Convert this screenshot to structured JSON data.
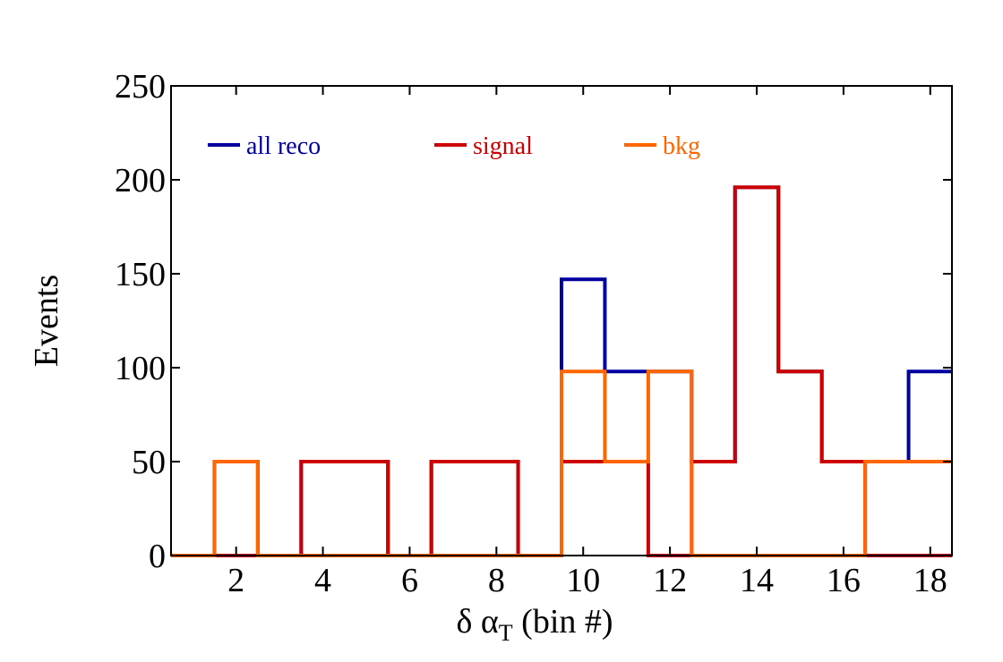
{
  "chart_data": {
    "type": "step",
    "xlabel": "δ α",
    "xlabel_subscript": "T",
    "xlabel_suffix": " (bin #)",
    "ylabel": "Events",
    "xlim": [
      0.5,
      18.5
    ],
    "ylim": [
      0,
      250
    ],
    "xticks": [
      2,
      4,
      6,
      8,
      10,
      12,
      14,
      16,
      18
    ],
    "yticks": [
      0,
      50,
      100,
      150,
      200,
      250
    ],
    "grid": false,
    "legend_position": "top, horizontal",
    "bins": [
      1,
      2,
      3,
      4,
      5,
      6,
      7,
      8,
      9,
      10,
      11,
      12,
      13,
      14,
      15,
      16,
      17,
      18
    ],
    "series": [
      {
        "name": "all reco",
        "color": "#00009f",
        "values": [
          0,
          50,
          0,
          50,
          50,
          0,
          50,
          50,
          0,
          147,
          98,
          98,
          50,
          196,
          98,
          50,
          50,
          98
        ]
      },
      {
        "name": "signal",
        "color": "#cc0000",
        "values": [
          0,
          0,
          0,
          50,
          50,
          0,
          50,
          50,
          0,
          50,
          50,
          0,
          50,
          196,
          98,
          50,
          0,
          0
        ]
      },
      {
        "name": "bkg",
        "color": "#ff6600",
        "values": [
          0,
          50,
          0,
          0,
          0,
          0,
          0,
          0,
          0,
          98,
          50,
          98,
          0,
          0,
          0,
          0,
          50,
          50
        ]
      }
    ]
  }
}
